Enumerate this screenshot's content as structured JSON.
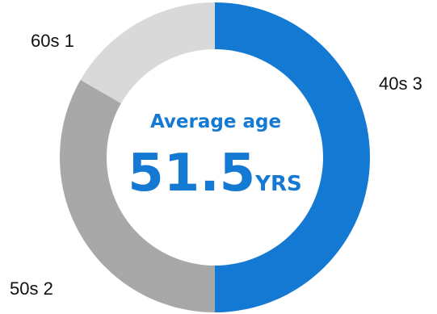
{
  "chart_data": {
    "type": "pie",
    "variant": "donut",
    "categories": [
      "40s",
      "50s",
      "60s"
    ],
    "values": [
      3,
      2,
      1
    ],
    "colors": [
      "#1479d2",
      "#a8a8a8",
      "#d9d9d9"
    ],
    "labels": [
      "40s 3",
      "50s 2",
      "60s 1"
    ],
    "center_title": "Average age",
    "center_value": "51.5",
    "center_unit": "YRS"
  }
}
